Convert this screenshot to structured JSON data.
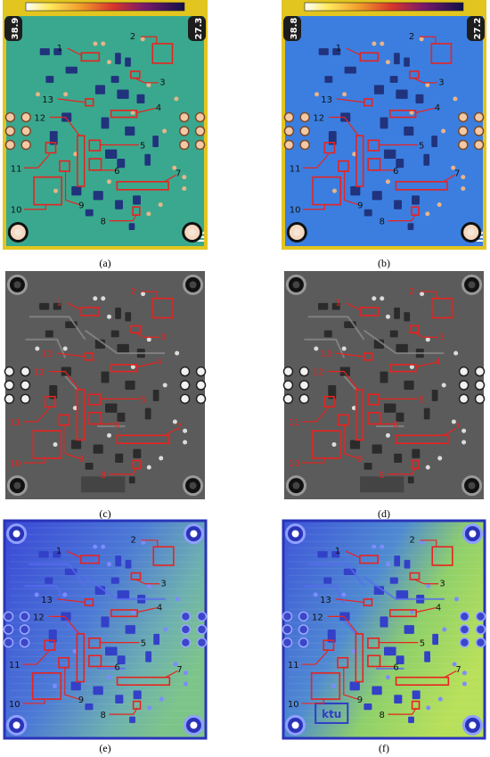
{
  "figure": {
    "panels": [
      {
        "id": "a",
        "caption": "(a)",
        "kind": "thermal-green",
        "temp_max": "38.9",
        "temp_min": "27.3",
        "mark": "IR"
      },
      {
        "id": "b",
        "caption": "(b)",
        "kind": "thermal-blue",
        "temp_max": "38.8",
        "temp_min": "27.2",
        "mark": "IR"
      },
      {
        "id": "c",
        "caption": "(c)",
        "kind": "gray"
      },
      {
        "id": "d",
        "caption": "(d)",
        "kind": "gray"
      },
      {
        "id": "e",
        "caption": "(e)",
        "kind": "map-blue"
      },
      {
        "id": "f",
        "caption": "(f)",
        "kind": "map-blue-green",
        "logo_text": "ktu"
      }
    ],
    "region_labels": [
      "1",
      "2",
      "3",
      "4",
      "5",
      "6",
      "7",
      "8",
      "9",
      "10",
      "11",
      "12",
      "13"
    ],
    "colors": {
      "annotation": "#e8231f",
      "thermal_green": "#3aa88e",
      "thermal_blue": "#3b7ee0",
      "gray_board": "#5b5b5b",
      "map_blue": "#4a5ee0"
    }
  }
}
